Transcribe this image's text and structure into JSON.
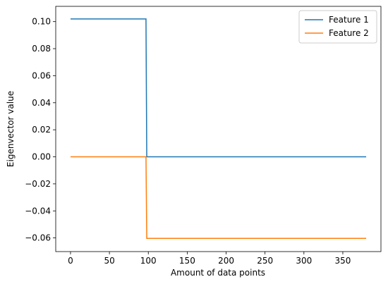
{
  "chart_data": {
    "type": "line",
    "x_label": "Amount of data points",
    "y_label": "Eigenvector value",
    "x": [
      0,
      97,
      98,
      380
    ],
    "series": [
      {
        "name": "Feature 1",
        "color": "#1f77b4",
        "values": [
          0.102,
          0.102,
          0,
          0
        ]
      },
      {
        "name": "Feature 2",
        "color": "#ff7f0e",
        "values": [
          0,
          0,
          -0.0603,
          -0.0603
        ]
      }
    ],
    "xlim": [
      -19,
      399
    ],
    "ylim": [
      -0.0701,
      0.1113
    ],
    "xticks": [
      0,
      50,
      100,
      150,
      200,
      250,
      300,
      350
    ],
    "yticks": [
      {
        "value": -0.06,
        "label": "−0.06"
      },
      {
        "value": -0.04,
        "label": "−0.04"
      },
      {
        "value": -0.02,
        "label": "−0.02"
      },
      {
        "value": 0,
        "label": "0.00"
      },
      {
        "value": 0.02,
        "label": "0.02"
      },
      {
        "value": 0.04,
        "label": "0.04"
      },
      {
        "value": 0.06,
        "label": "0.06"
      },
      {
        "value": 0.08,
        "label": "0.08"
      },
      {
        "value": 0.1,
        "label": "0.10"
      }
    ],
    "legend": "upper right"
  }
}
